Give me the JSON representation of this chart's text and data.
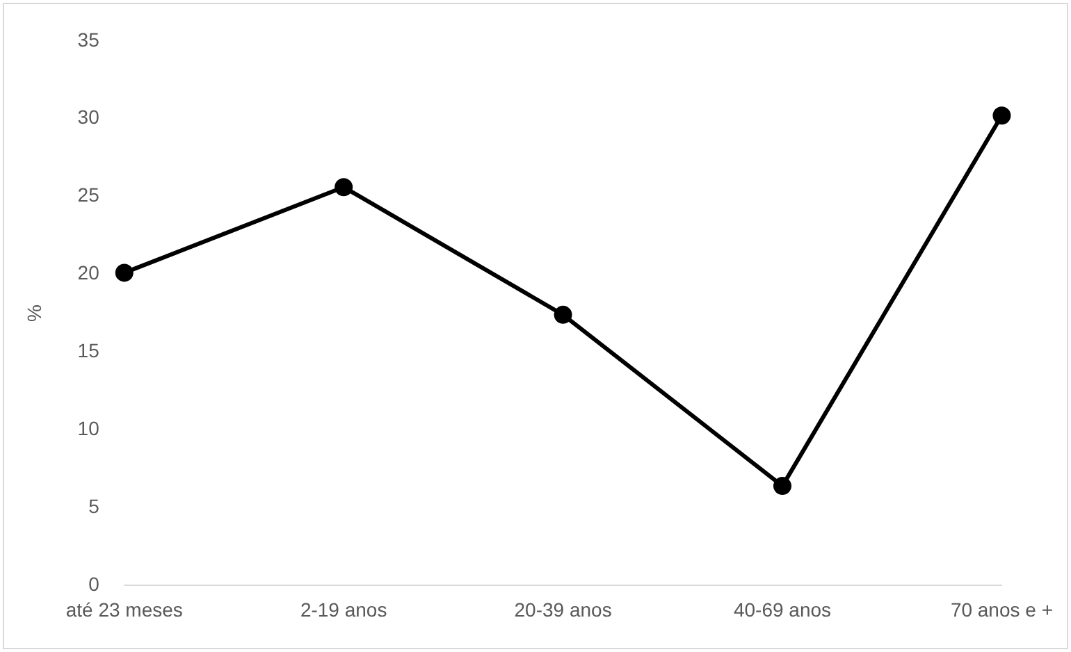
{
  "chart_data": {
    "type": "line",
    "ylabel": "%",
    "categories": [
      "até 23 meses",
      "2-19 anos",
      "20-39 anos",
      "40-69 anos",
      "70 anos e +"
    ],
    "series": [
      {
        "color": "#000000",
        "values": [
          20.1,
          25.6,
          17.4,
          6.4,
          30.2
        ]
      }
    ],
    "ylim": [
      0,
      35
    ],
    "yticks": [
      0,
      5,
      10,
      15,
      20,
      25,
      30,
      35
    ],
    "grid": false,
    "legend": false,
    "marker": "circle",
    "line_style": "solid"
  }
}
